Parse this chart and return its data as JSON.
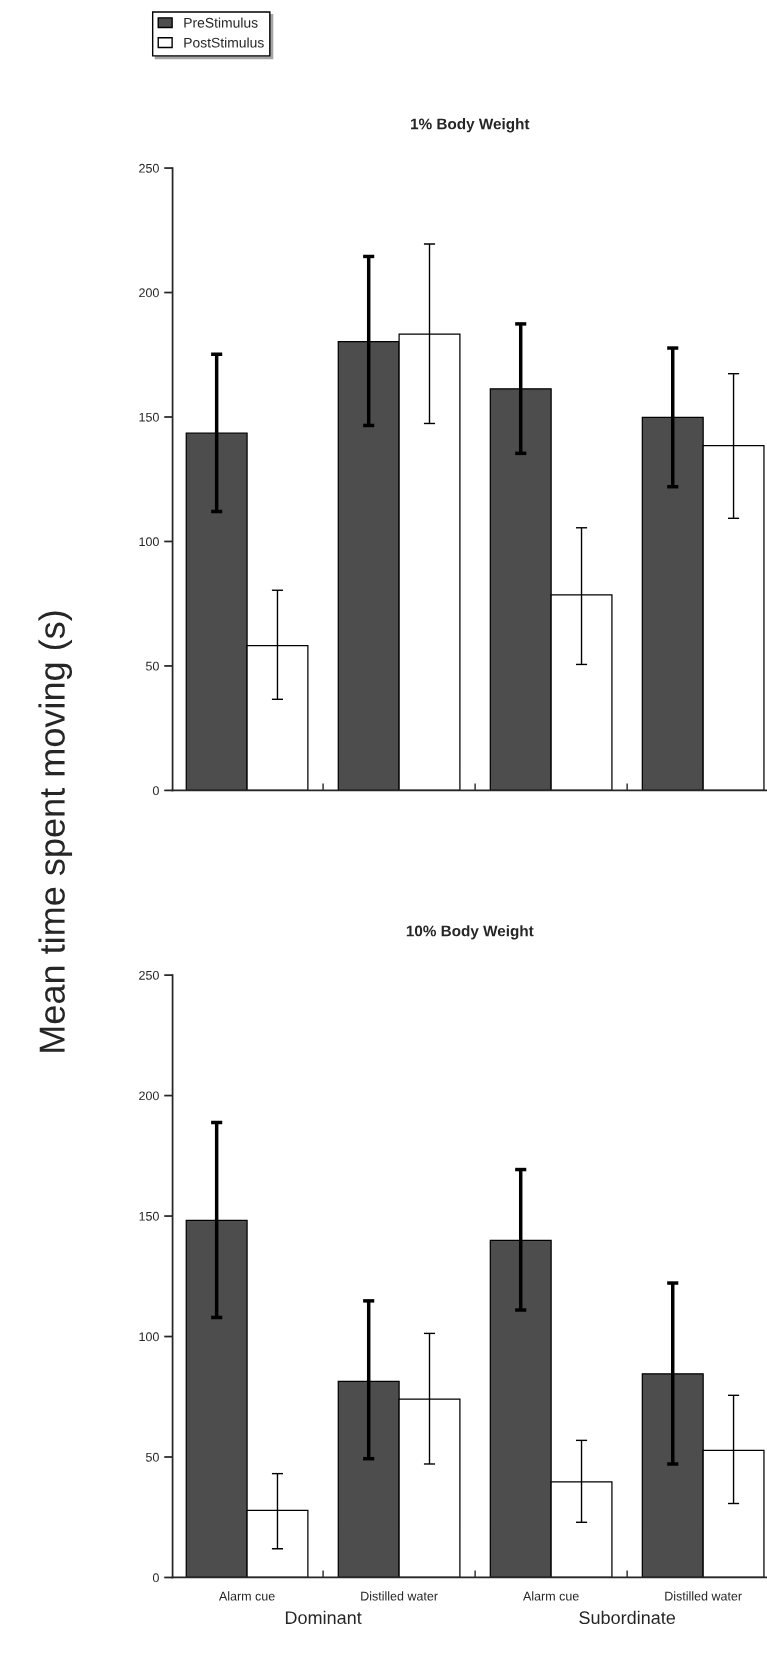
{
  "chart_data": [
    {
      "type": "bar",
      "title": "1% Body Weight",
      "ylabel": "Mean time spent moving (s)",
      "categories": [
        null,
        null,
        null,
        null
      ],
      "tick_labels": "y",
      "legend": "top left",
      "ylim": [
        0,
        250
      ],
      "yticks": [
        0,
        50,
        100,
        150,
        200,
        250
      ],
      "series": [
        {
          "name": "PreStimulus",
          "color": "#4d4d4d",
          "values": [
            143.5,
            180.3,
            161.3,
            149.8
          ],
          "errors": [
            [
              112,
              175.2
            ],
            [
              146.6,
              214.5
            ],
            [
              135.4,
              187.4
            ],
            [
              122,
              177.7
            ]
          ]
        },
        {
          "name": "PostStimulus",
          "color": "#ffffff",
          "values": [
            58.2,
            183.3,
            78.5,
            138.5
          ],
          "errors": [
            [
              36.6,
              80.4
            ],
            [
              147.4,
              219.5
            ],
            [
              50.6,
              105.5
            ],
            [
              109.3,
              167.4
            ]
          ]
        }
      ]
    },
    {
      "type": "bar",
      "title": "10% Body Weight",
      "categories": [
        "Alarm cue",
        "Distilled water",
        "Alarm cue",
        "Distilled water"
      ],
      "ylim": [
        0,
        250
      ],
      "yticks": [
        0,
        50,
        100,
        150,
        200,
        250
      ],
      "annotations": [
        "Dominant",
        "Subordinate"
      ],
      "series": [
        {
          "color": "#4d4d4d",
          "values": [
            148.2,
            81.4,
            139.9,
            84.5
          ],
          "errors": [
            [
              107.9,
              188.8
            ],
            [
              49.3,
              114.8
            ],
            [
              111,
              169.3
            ],
            [
              47.1,
              122.2
            ]
          ]
        },
        {
          "color": "#ffffff",
          "values": [
            27.8,
            74,
            39.7,
            52.7
          ],
          "errors": [
            [
              11.9,
              43.1
            ],
            [
              47.1,
              101.3
            ],
            [
              22.9,
              56.9
            ],
            [
              30.7,
              75.6
            ]
          ]
        }
      ]
    }
  ]
}
